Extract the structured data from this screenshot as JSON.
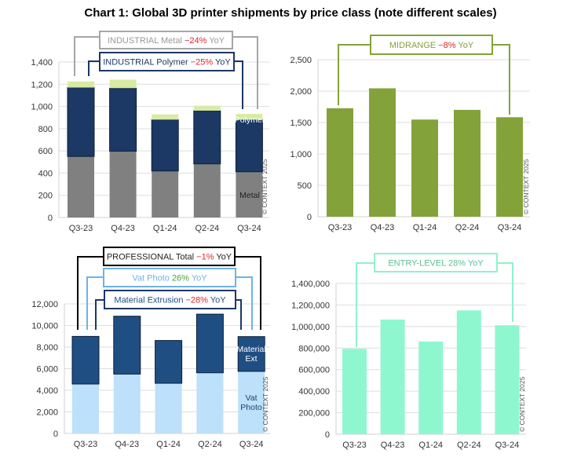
{
  "title": "Chart 1: Global 3D printer shipments by price class (note different scales)",
  "copyright": "© CONTEXT 2025",
  "colors": {
    "negative": "#e3242b",
    "positive": "#3aa935"
  },
  "chart_data": [
    {
      "type": "bar",
      "stacked": true,
      "categories": [
        "Q3-23",
        "Q4-23",
        "Q1-24",
        "Q2-24",
        "Q3-24"
      ],
      "ylim": [
        0,
        1400
      ],
      "yticks": [
        "0",
        "200",
        "400",
        "600",
        "800",
        "1,000",
        "1,200",
        "1,400"
      ],
      "grid": true,
      "series": [
        {
          "name": "Metal",
          "color": "#808080",
          "label_color": "#222222",
          "values": [
            550,
            597,
            419,
            483,
            412
          ]
        },
        {
          "name": "Polymer",
          "color": "#1c3864",
          "label_color": "#ffffff",
          "values": [
            620,
            568,
            462,
            479,
            469
          ]
        },
        {
          "color": "#d7eba3",
          "values": [
            55,
            76,
            48,
            45,
            52
          ]
        }
      ],
      "callouts": [
        {
          "border": "#a6a6a6",
          "parts": [
            {
              "text": "INDUSTRIAL Metal ",
              "color": "#9a9a9a"
            },
            {
              "text": "−24%",
              "color": "#e3242b"
            },
            {
              "text": " YoY",
              "color": "#9a9a9a"
            }
          ]
        },
        {
          "border": "#1c3864",
          "parts": [
            {
              "text": "INDUSTRIAL Polymer ",
              "color": "#1c3864"
            },
            {
              "text": "−25%",
              "color": "#e3242b"
            },
            {
              "text": " YoY",
              "color": "#1c3864"
            }
          ]
        }
      ]
    },
    {
      "type": "bar",
      "categories": [
        "Q3-23",
        "Q4-23",
        "Q1-24",
        "Q2-24",
        "Q3-24"
      ],
      "ylim": [
        0,
        2500
      ],
      "yticks": [
        "0",
        "500",
        "1,000",
        "1,500",
        "2,000",
        "2,500"
      ],
      "grid": true,
      "series": [
        {
          "color": "#84a23a",
          "values": [
            1727,
            2044,
            1547,
            1701,
            1584
          ]
        }
      ],
      "callouts": [
        {
          "border": "#84a23a",
          "parts": [
            {
              "text": "MIDRANGE ",
              "color": "#84a23a"
            },
            {
              "text": "−8%",
              "color": "#e3242b"
            },
            {
              "text": " YoY",
              "color": "#84a23a"
            }
          ]
        }
      ]
    },
    {
      "type": "bar",
      "stacked": true,
      "categories": [
        "Q3-23",
        "Q4-23",
        "Q1-24",
        "Q2-24",
        "Q3-24"
      ],
      "ylim": [
        0,
        12000
      ],
      "yticks": [
        "0",
        "2,000",
        "4,000",
        "6,000",
        "8,000",
        "10,000",
        "12,000"
      ],
      "grid": true,
      "series": [
        {
          "name": "Vat Photo",
          "label_lines": [
            "Vat",
            "Photo"
          ],
          "color": "#bde0fb",
          "label_color": "#1f3f6e",
          "values": [
            4580,
            5500,
            4650,
            5620,
            5750
          ]
        },
        {
          "name": "Material Ext",
          "label_lines": [
            "Material",
            "Ext"
          ],
          "color": "#1f4e82",
          "label_color": "#ffffff",
          "values": [
            4410,
            5360,
            3960,
            5430,
            3220
          ]
        }
      ],
      "callouts": [
        {
          "border": "#000000",
          "parts": [
            {
              "text": "PROFESSIONAL Total ",
              "color": "#222222"
            },
            {
              "text": "−1%",
              "color": "#e3242b"
            },
            {
              "text": " YoY",
              "color": "#222222"
            }
          ]
        },
        {
          "border": "#6fb3e6",
          "parts": [
            {
              "text": "Vat Photo  ",
              "color": "#6fb3e6"
            },
            {
              "text": "26%",
              "color": "#3aa935"
            },
            {
              "text": " YoY",
              "color": "#6fb3e6"
            }
          ]
        },
        {
          "border": "#1c3864",
          "parts": [
            {
              "text": "Material Extrusion ",
              "color": "#1f4e82"
            },
            {
              "text": "−28%",
              "color": "#e3242b"
            },
            {
              "text": " YoY",
              "color": "#1f4e82"
            }
          ]
        }
      ]
    },
    {
      "type": "bar",
      "categories": [
        "Q3-23",
        "Q4-23",
        "Q1-24",
        "Q2-24",
        "Q3-24"
      ],
      "ylim": [
        0,
        1400000
      ],
      "yticks": [
        "0",
        "200,000",
        "400,000",
        "600,000",
        "800,000",
        "1,000,000",
        "1,200,000",
        "1,400,000"
      ],
      "grid": true,
      "series": [
        {
          "color": "#8ff7cf",
          "values": [
            793000,
            1065000,
            861000,
            1150000,
            1012000
          ]
        }
      ],
      "callouts": [
        {
          "border": "#8ff2cc",
          "parts": [
            {
              "text": "ENTRY-LEVEL 28% YoY",
              "color": "#5fbf95"
            }
          ]
        }
      ]
    }
  ]
}
